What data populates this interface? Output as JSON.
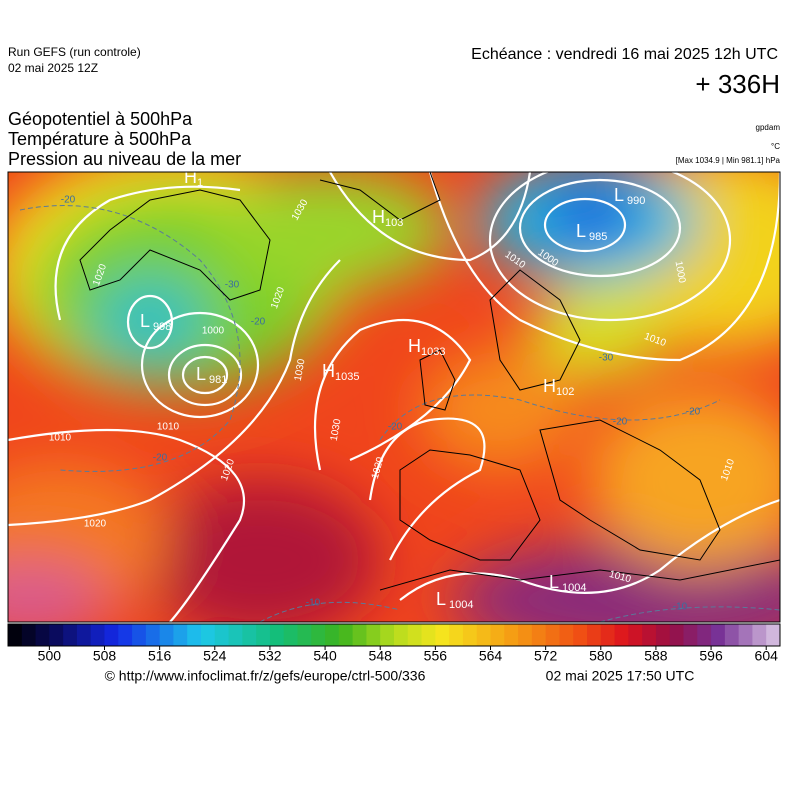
{
  "header": {
    "run": "Run GEFS (run controle)",
    "run_date": "02 mai 2025 12Z",
    "echeance": "Echéance : vendredi 16 mai 2025 12h UTC",
    "lead": "+ 336H",
    "unit_geo": "gpdam",
    "unit_temp": "°C",
    "pressure_range": "[Max 1034.9 | Min 981.1] hPa",
    "titles": [
      "Géopotentiel à 500hPa",
      "Température à 500hPa",
      "Pression au niveau de la mer"
    ]
  },
  "centers": [
    {
      "letter": "L",
      "value": 981
    },
    {
      "letter": "L",
      "value": 998
    },
    {
      "letter": "L",
      "value": 985
    },
    {
      "letter": "L",
      "value": 990
    },
    {
      "letter": "H",
      "value": 1033
    },
    {
      "letter": "H",
      "value": 1035
    },
    {
      "letter": "H",
      "value": 103
    },
    {
      "letter": "H",
      "value": 1
    },
    {
      "letter": "H",
      "value": 102
    },
    {
      "letter": "L",
      "value": 1004
    },
    {
      "letter": "L",
      "value": 1004
    }
  ],
  "isobar_labels": [
    1020,
    1010,
    1020,
    1000,
    1010,
    1020,
    1030,
    1030,
    1020,
    1010,
    1000,
    1000,
    1010,
    1010,
    1010,
    1020,
    1030
  ],
  "temperature_labels": [
    -20,
    -20,
    -20,
    -30,
    -30,
    -20,
    -20,
    -20,
    -10,
    -10
  ],
  "colorbar": {
    "lim": [
      494,
      606
    ],
    "ticks": [
      500,
      508,
      516,
      524,
      532,
      540,
      548,
      556,
      564,
      572,
      580,
      588,
      596,
      604
    ]
  },
  "footer": {
    "source": "© http://www.infoclimat.fr/z/gefs/europe/ctrl-500/336",
    "generated": "02 mai 2025 17:50 UTC"
  }
}
